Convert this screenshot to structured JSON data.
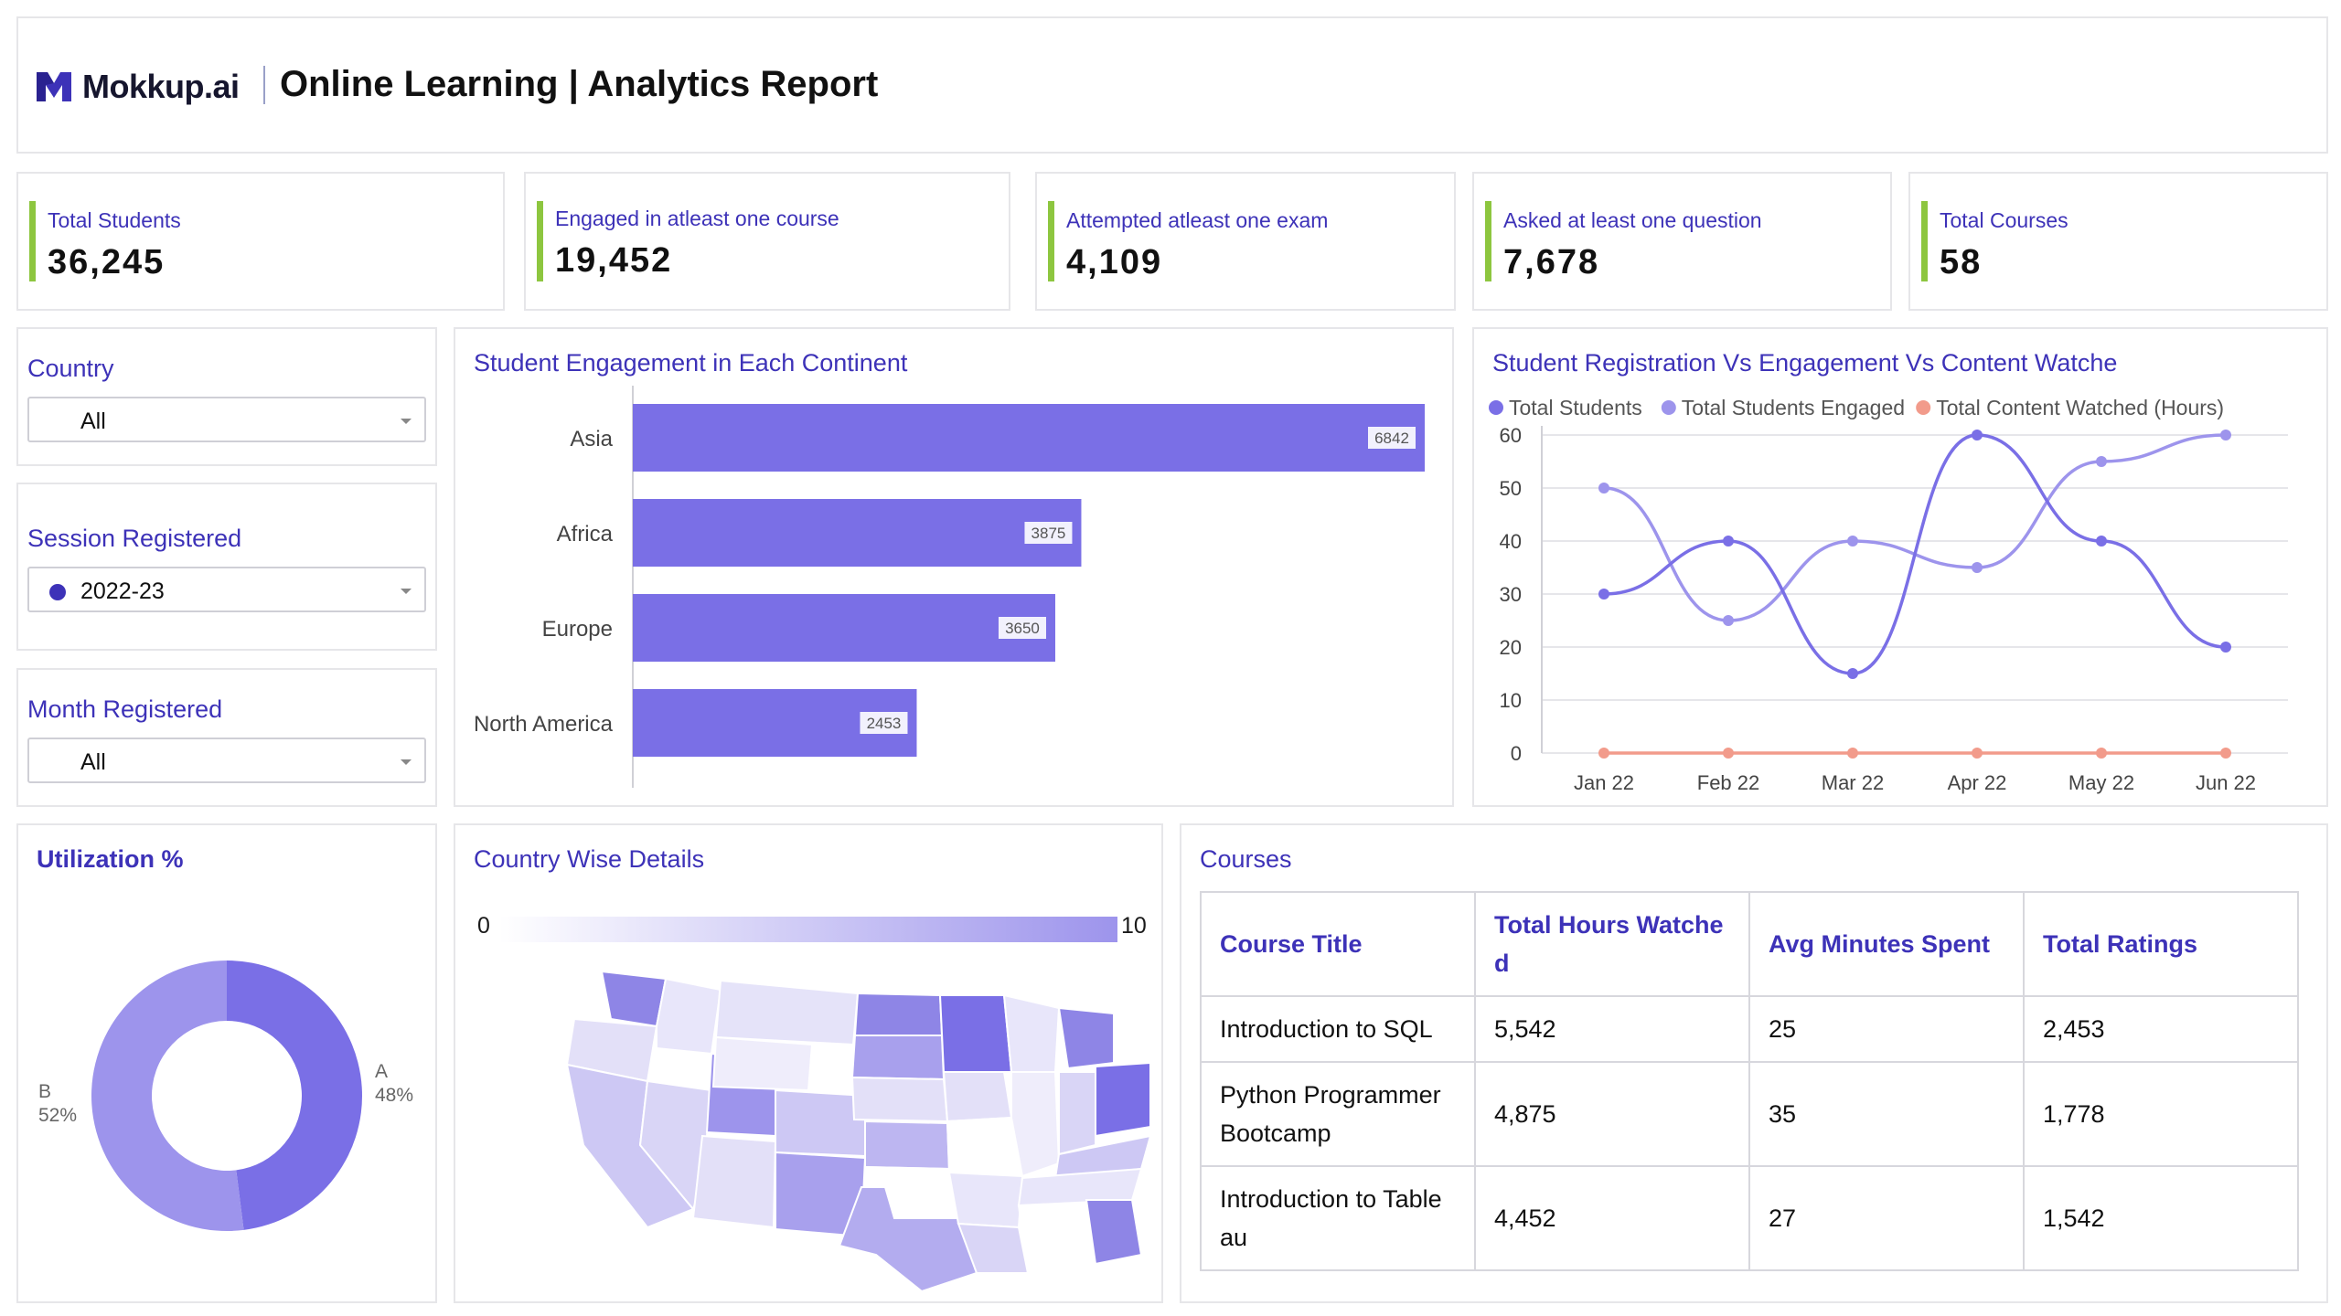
{
  "header": {
    "brand": "Mokkup.ai",
    "title": "Online Learning | Analytics Report"
  },
  "kpis": [
    {
      "label": "Total Students",
      "value": "36,245"
    },
    {
      "label": "Engaged in atleast one course",
      "value": "19,452"
    },
    {
      "label": "Attempted atleast one exam",
      "value": "4,109"
    },
    {
      "label": "Asked at least one question",
      "value": "7,678"
    },
    {
      "label": "Total Courses",
      "value": "58"
    }
  ],
  "filters": {
    "country": {
      "label": "Country",
      "value": "All"
    },
    "session": {
      "label": "Session Registered",
      "value": "2022-23"
    },
    "month": {
      "label": "Month Registered",
      "value": "All"
    }
  },
  "colors": {
    "accent": "#3d32b8",
    "bar": "#7a6fe6",
    "kpi_bar": "#8dc63f",
    "line_students": "#7a6fe6",
    "line_engaged": "#9d94ec",
    "line_content": "#f29b8b"
  },
  "engagement_panel": {
    "title": "Student Engagement in Each Continent"
  },
  "registration_panel": {
    "title": "Student Registration Vs Engagement Vs Content Watche"
  },
  "utilization_panel": {
    "title": "Utilization %"
  },
  "map_panel": {
    "title": "Country Wise Details",
    "scale_min": "0",
    "scale_max": "10"
  },
  "courses_panel": {
    "title": "Courses",
    "headers": [
      "Course Title",
      "Total Hours Watche d",
      "Avg Minutes Spent",
      "Total Ratings"
    ],
    "rows": [
      [
        "Introduction to SQL",
        "5,542",
        "25",
        "2,453"
      ],
      [
        "Python Programmer Bootcamp",
        "4,875",
        "35",
        "1,778"
      ],
      [
        "Introduction to Table au",
        "4,452",
        "27",
        "1,542"
      ]
    ]
  },
  "chart_data": [
    {
      "type": "bar",
      "orientation": "horizontal",
      "title": "Student Engagement in Each Continent",
      "categories": [
        "Asia",
        "Africa",
        "Europe",
        "North America"
      ],
      "values": [
        6842,
        3875,
        3650,
        2453
      ],
      "xlim": [
        0,
        6842
      ]
    },
    {
      "type": "line",
      "title": "Student Registration Vs Engagement Vs Content Watche",
      "x": [
        "Jan 22",
        "Feb 22",
        "Mar 22",
        "Apr 22",
        "May 22",
        "Jun 22"
      ],
      "ylim": [
        0,
        60
      ],
      "yticks": [
        0,
        10,
        20,
        30,
        40,
        50,
        60
      ],
      "grid": true,
      "legend": "top",
      "series": [
        {
          "name": "Total Students",
          "values": [
            30,
            40,
            15,
            60,
            40,
            20
          ]
        },
        {
          "name": "Total Students Engaged",
          "values": [
            50,
            25,
            40,
            35,
            55,
            60
          ]
        },
        {
          "name": "Total Content Watched (Hours)",
          "values": [
            0,
            0,
            0,
            0,
            0,
            0
          ]
        }
      ]
    },
    {
      "type": "pie",
      "title": "Utilization %",
      "donut": true,
      "slices": [
        {
          "name": "A",
          "value": 48,
          "label": "48%"
        },
        {
          "name": "B",
          "value": 52,
          "label": "52%"
        }
      ]
    }
  ]
}
